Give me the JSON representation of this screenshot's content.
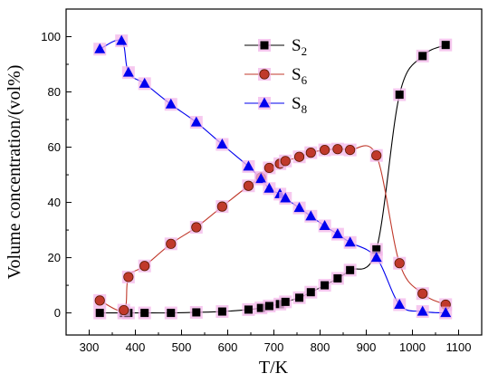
{
  "chart_data": {
    "type": "scatter",
    "xlabel": "T/K",
    "ylabel": "Volume concentration/(vol%)",
    "xlim": [
      250,
      1150
    ],
    "ylim": [
      -8,
      110
    ],
    "x_ticks": [
      "300",
      "400",
      "500",
      "600",
      "700",
      "800",
      "900",
      "1000",
      "1100"
    ],
    "y_ticks": [
      "0",
      "20",
      "40",
      "60",
      "80",
      "100"
    ],
    "legend_position": "top-center",
    "series": [
      {
        "name": "S",
        "name_subscript": "2",
        "color": "#000000",
        "marker": "square",
        "x": [
          323,
          375,
          385,
          420,
          477,
          532,
          588,
          645,
          672,
          690,
          713,
          725,
          755,
          780,
          810,
          838,
          865,
          922,
          972,
          1022,
          1072
        ],
        "y": [
          0,
          0,
          0,
          0,
          0,
          0.2,
          0.5,
          1.2,
          1.8,
          2.5,
          3.2,
          4,
          5.5,
          7.5,
          10,
          12.5,
          15.5,
          23,
          79,
          93,
          97
        ]
      },
      {
        "name": "S",
        "name_subscript": "6",
        "color": "#c0392b",
        "marker": "circle",
        "x": [
          323,
          375,
          385,
          420,
          477,
          532,
          588,
          645,
          672,
          690,
          713,
          725,
          755,
          780,
          810,
          838,
          865,
          922,
          972,
          1022,
          1072
        ],
        "y": [
          4.5,
          1,
          13,
          17,
          25,
          31,
          38.5,
          46,
          49,
          52.5,
          54,
          55,
          56.5,
          58,
          59,
          59.3,
          59,
          57,
          18,
          7,
          3
        ]
      },
      {
        "name": "S",
        "name_subscript": "8",
        "color": "#0000ee",
        "marker": "triangle",
        "x": [
          323,
          370,
          385,
          420,
          477,
          532,
          588,
          645,
          672,
          690,
          713,
          725,
          755,
          780,
          810,
          838,
          865,
          922,
          972,
          1022,
          1072
        ],
        "y": [
          95.5,
          98.5,
          87,
          83,
          75.5,
          69,
          61,
          53,
          48.5,
          45,
          43,
          41.5,
          38,
          35,
          31.5,
          28.5,
          25.5,
          20,
          3,
          0.5,
          0
        ]
      }
    ]
  }
}
